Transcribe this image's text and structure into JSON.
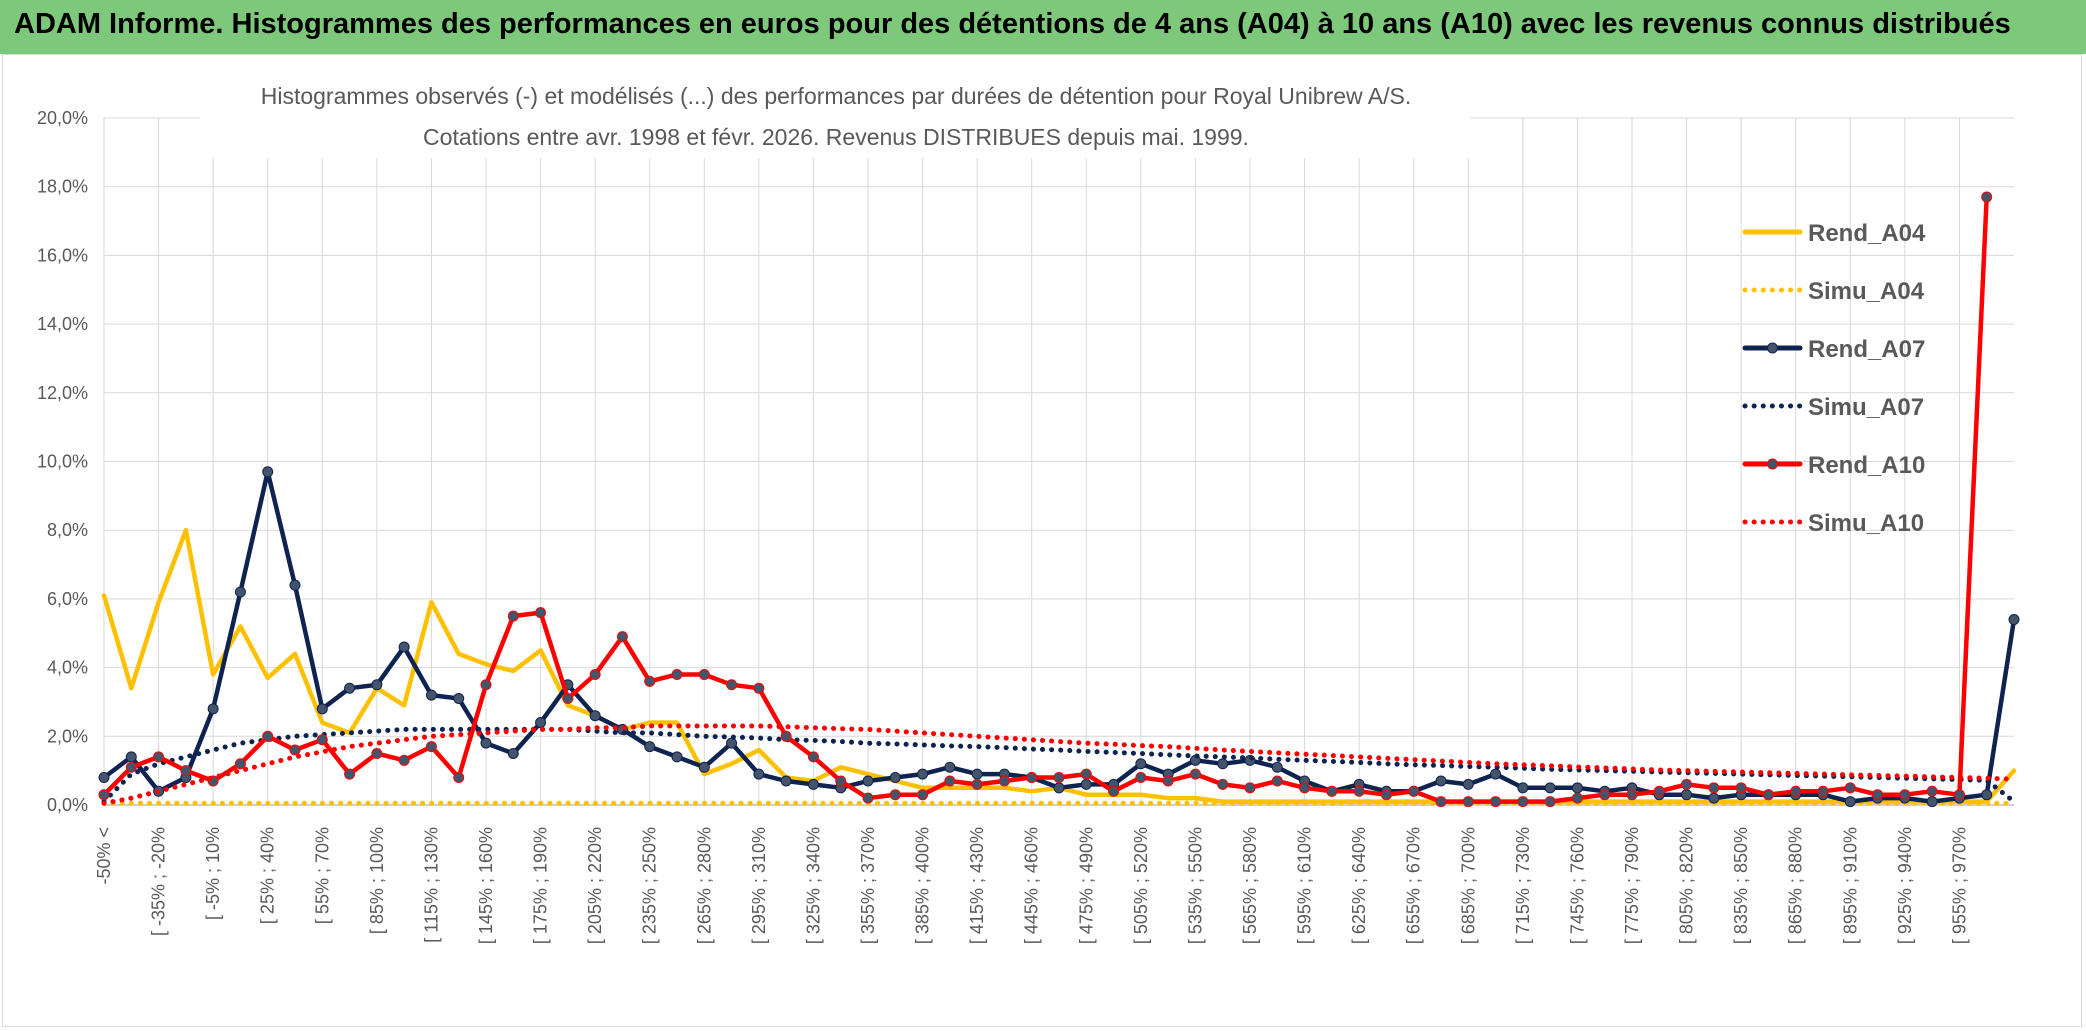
{
  "header": {
    "title": "ADAM Informe. Histogrammes des performances en euros pour des détentions de 4 ans (A04) à 10 ans (A10) avec les revenus connus distribués"
  },
  "chart_data": {
    "type": "line",
    "title_line1": "Histogrammes observés (-) et modélisés (...) des performances par durées de détention pour Royal Unibrew A/S.",
    "title_line2": "Cotations entre avr. 1998 et févr. 2026. Revenus DISTRIBUES depuis mai. 1999.",
    "xlabel": "",
    "ylabel": "",
    "ylim": [
      0,
      20
    ],
    "yticks": [
      "0,0%",
      "2,0%",
      "4,0%",
      "6,0%",
      "8,0%",
      "10,0%",
      "12,0%",
      "14,0%",
      "16,0%",
      "18,0%",
      "20,0%"
    ],
    "grid": true,
    "legend_position": "right",
    "x_tick_labels": [
      "-50% <",
      "[ -35% ; -20%",
      "[ -5% ; 10%",
      "[ 25% ; 40%",
      "[ 55% ; 70%",
      "[ 85% ; 100%",
      "[ 115% ; 130%",
      "[ 145% ; 160%",
      "[ 175% ; 190%",
      "[ 205% ; 220%",
      "[ 235% ; 250%",
      "[ 265% ; 280%",
      "[ 295% ; 310%",
      "[ 325% ; 340%",
      "[ 355% ; 370%",
      "[ 385% ; 400%",
      "[ 415% ; 430%",
      "[ 445% ; 460%",
      "[ 475% ; 490%",
      "[ 505% ; 520%",
      "[ 535% ; 550%",
      "[ 565% ; 580%",
      "[ 595% ; 610%",
      "[ 625% ; 640%",
      "[ 655% ; 670%",
      "[ 685% ; 700%",
      "[ 715% ; 730%",
      "[ 745% ; 760%",
      "[ 775% ; 790%",
      "[ 805% ; 820%",
      "[ 835% ; 850%",
      "[ 865% ; 880%",
      "[ 895% ; 910%",
      "[ 925% ; 940%",
      "[ 955% ; 970%"
    ],
    "series": [
      {
        "name": "Rend_A04",
        "color": "#ffc000",
        "style": "solid",
        "markers": false,
        "values": [
          6.1,
          3.4,
          5.9,
          8.0,
          3.8,
          5.2,
          3.7,
          4.4,
          2.4,
          2.1,
          3.4,
          2.9,
          5.9,
          4.4,
          4.1,
          3.9,
          4.5,
          2.9,
          2.6,
          2.2,
          2.4,
          2.4,
          0.9,
          1.2,
          1.6,
          0.8,
          0.7,
          1.1,
          0.9,
          0.7,
          0.5,
          0.5,
          0.5,
          0.5,
          0.4,
          0.5,
          0.3,
          0.3,
          0.3,
          0.2,
          0.2,
          0.1,
          0.1,
          0.1,
          0.1,
          0.1,
          0.1,
          0.1,
          0.1,
          0.1,
          0.1,
          0.1,
          0.1,
          0.1,
          0.1,
          0.1,
          0.1,
          0.1,
          0.1,
          0.1,
          0.1,
          0.1,
          0.1,
          0.1,
          0.1,
          0.1,
          0.1,
          0.1,
          0.1,
          0.1,
          1.0
        ]
      },
      {
        "name": "Simu_A04",
        "color": "#ffc000",
        "style": "dotted",
        "markers": false,
        "values": [
          0.05,
          0.05,
          0.05,
          0.05,
          0.05,
          0.05,
          0.05,
          0.05,
          0.05,
          0.05,
          0.05,
          0.05,
          0.05,
          0.05,
          0.05,
          0.05,
          0.05,
          0.05,
          0.05,
          0.05,
          0.05,
          0.05,
          0.05,
          0.05,
          0.05,
          0.05,
          0.05,
          0.05,
          0.05,
          0.05,
          0.05,
          0.05,
          0.05,
          0.05,
          0.05,
          0.05,
          0.05,
          0.05,
          0.05,
          0.05,
          0.05,
          0.05,
          0.05,
          0.05,
          0.05,
          0.05,
          0.05,
          0.05,
          0.05,
          0.05,
          0.05,
          0.05,
          0.05,
          0.05,
          0.05,
          0.05,
          0.05,
          0.05,
          0.05,
          0.05,
          0.05,
          0.05,
          0.05,
          0.05,
          0.05,
          0.05,
          0.05,
          0.05,
          0.05,
          0.05,
          0.05
        ]
      },
      {
        "name": "Rend_A07",
        "color": "#0f2350",
        "style": "solid",
        "markers": true,
        "values": [
          0.8,
          1.4,
          0.4,
          0.8,
          2.8,
          6.2,
          9.7,
          6.4,
          2.8,
          3.4,
          3.5,
          4.6,
          3.2,
          3.1,
          1.8,
          1.5,
          2.4,
          3.5,
          2.6,
          2.2,
          1.7,
          1.4,
          1.1,
          1.8,
          0.9,
          0.7,
          0.6,
          0.5,
          0.7,
          0.8,
          0.9,
          1.1,
          0.9,
          0.9,
          0.8,
          0.5,
          0.6,
          0.6,
          1.2,
          0.9,
          1.3,
          1.2,
          1.3,
          1.1,
          0.7,
          0.4,
          0.6,
          0.4,
          0.4,
          0.7,
          0.6,
          0.9,
          0.5,
          0.5,
          0.5,
          0.4,
          0.5,
          0.3,
          0.3,
          0.2,
          0.3,
          0.3,
          0.3,
          0.3,
          0.1,
          0.2,
          0.2,
          0.1,
          0.2,
          0.3,
          5.4
        ]
      },
      {
        "name": "Simu_A07",
        "color": "#0f2350",
        "style": "dotted",
        "markers": false,
        "values": [
          0.1,
          0.9,
          1.2,
          1.4,
          1.6,
          1.8,
          1.9,
          2.0,
          2.05,
          2.1,
          2.15,
          2.2,
          2.2,
          2.2,
          2.2,
          2.2,
          2.2,
          2.2,
          2.15,
          2.1,
          2.1,
          2.05,
          2.0,
          1.98,
          1.95,
          1.9,
          1.88,
          1.85,
          1.8,
          1.78,
          1.75,
          1.72,
          1.7,
          1.67,
          1.63,
          1.6,
          1.56,
          1.53,
          1.5,
          1.46,
          1.43,
          1.4,
          1.37,
          1.33,
          1.3,
          1.27,
          1.24,
          1.2,
          1.17,
          1.15,
          1.12,
          1.1,
          1.07,
          1.04,
          1.02,
          1.0,
          0.98,
          0.96,
          0.94,
          0.92,
          0.9,
          0.88,
          0.86,
          0.84,
          0.82,
          0.8,
          0.78,
          0.76,
          0.74,
          0.72,
          0.1
        ]
      },
      {
        "name": "Rend_A10",
        "color": "#ff0000",
        "style": "solid",
        "markers": true,
        "values": [
          0.3,
          1.1,
          1.4,
          1.0,
          0.7,
          1.2,
          2.0,
          1.6,
          1.9,
          0.9,
          1.5,
          1.3,
          1.7,
          0.8,
          3.5,
          5.5,
          5.6,
          3.1,
          3.8,
          4.9,
          3.6,
          3.8,
          3.8,
          3.5,
          3.4,
          2.0,
          1.4,
          0.7,
          0.2,
          0.3,
          0.3,
          0.7,
          0.6,
          0.7,
          0.8,
          0.8,
          0.9,
          0.4,
          0.8,
          0.7,
          0.9,
          0.6,
          0.5,
          0.7,
          0.5,
          0.4,
          0.4,
          0.3,
          0.4,
          0.1,
          0.1,
          0.1,
          0.1,
          0.1,
          0.2,
          0.3,
          0.3,
          0.4,
          0.6,
          0.5,
          0.5,
          0.3,
          0.4,
          0.4,
          0.5,
          0.3,
          0.3,
          0.4,
          0.3,
          17.7
        ]
      },
      {
        "name": "Simu_A10",
        "color": "#ff0000",
        "style": "dotted",
        "markers": false,
        "values": [
          0.05,
          0.2,
          0.4,
          0.6,
          0.8,
          1.0,
          1.2,
          1.4,
          1.55,
          1.7,
          1.8,
          1.9,
          2.0,
          2.05,
          2.1,
          2.15,
          2.2,
          2.2,
          2.25,
          2.25,
          2.3,
          2.3,
          2.3,
          2.3,
          2.3,
          2.28,
          2.25,
          2.22,
          2.2,
          2.15,
          2.1,
          2.05,
          2.0,
          1.95,
          1.9,
          1.85,
          1.8,
          1.77,
          1.73,
          1.7,
          1.65,
          1.6,
          1.56,
          1.52,
          1.48,
          1.44,
          1.4,
          1.36,
          1.32,
          1.28,
          1.24,
          1.2,
          1.17,
          1.14,
          1.11,
          1.08,
          1.05,
          1.02,
          1.0,
          0.98,
          0.96,
          0.94,
          0.92,
          0.9,
          0.88,
          0.86,
          0.84,
          0.82,
          0.8,
          0.78,
          0.75
        ]
      }
    ]
  }
}
